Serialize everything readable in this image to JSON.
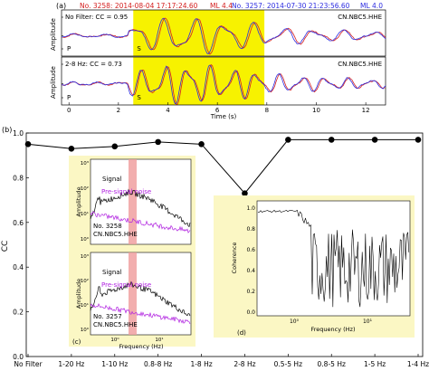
{
  "colors": {
    "red": "#d42020",
    "blue": "#2d2de0",
    "black": "#000000",
    "yellow": "#f7f200",
    "inset_bg": "#fbf7c4",
    "magenta": "#b020e0",
    "band": "#f0a0a0"
  },
  "panel_a": {
    "label": "(a)",
    "legend_red": "No. 3258: 2014-08-04 17:17:24.60",
    "legend_red_mag": "ML 4.4",
    "legend_blue": "No. 3257: 2014-07-30 21:23:56.60",
    "legend_blue_mag": "ML 4.0",
    "ylabel": "Amplitude",
    "xlabel": "Time (s)",
    "x_ticks": [
      "0",
      "2",
      "4",
      "6",
      "8",
      "10",
      "12"
    ],
    "highlight_window": [
      2.6,
      7.9
    ],
    "xlim": [
      -0.3,
      12.8
    ],
    "traces": [
      {
        "label_left": "No Filter: CC = 0.95",
        "label_right": "CN.NBC5.HHE",
        "phase_p": "P",
        "phase_s": "S"
      },
      {
        "label_left": "2-8 Hz: CC = 0.73",
        "label_right": "CN.NBC5.HHE",
        "phase_p": "P",
        "phase_s": "S"
      }
    ]
  },
  "panel_b": {
    "label": "(b)",
    "ylabel": "CC"
  },
  "chart_data": {
    "type": "line",
    "categories": [
      "No Filter",
      "1-20 Hz",
      "1-10 Hz",
      "0.8-8 Hz",
      "1-8 Hz",
      "2-8 Hz",
      "0.5-5 Hz",
      "0.8-5 Hz",
      "1-5 Hz",
      "1-4 Hz"
    ],
    "values": [
      0.95,
      0.93,
      0.94,
      0.96,
      0.95,
      0.73,
      0.97,
      0.97,
      0.97,
      0.97
    ],
    "ylim": [
      0.0,
      1.0
    ],
    "y_ticks": [
      "0.0",
      "0.2",
      "0.4",
      "0.6",
      "0.8",
      "1.0"
    ],
    "xlabel": "",
    "ylabel": "CC"
  },
  "panel_c": {
    "label": "(c)",
    "ylabel": "Amplitude",
    "xlabel": "Frequency (Hz)",
    "signal_label": "Signal",
    "noise_label": "Pre-signal noise",
    "top_event": "No. 3258",
    "bottom_event": "No. 3257",
    "station": "CN.NBC5.HHE",
    "y_ticks": [
      "10⁰",
      "10¹",
      "10²",
      "10³"
    ],
    "x_ticks": [
      "10⁰",
      "10¹"
    ]
  },
  "panel_d": {
    "label": "(d)",
    "ylabel": "Coherence",
    "xlabel": "Frequency (Hz)",
    "y_ticks": [
      "0.0",
      "0.2",
      "0.4",
      "0.6",
      "0.8",
      "1.0"
    ],
    "x_ticks": [
      "10⁰",
      "10¹"
    ]
  }
}
